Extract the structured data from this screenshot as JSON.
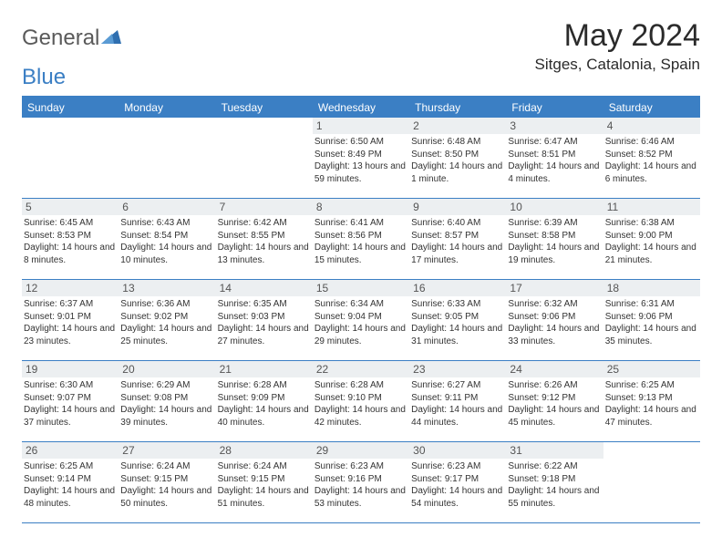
{
  "logo": {
    "text1": "General",
    "text2": "Blue"
  },
  "title": "May 2024",
  "location": "Sitges, Catalonia, Spain",
  "colors": {
    "primary": "#3b7fc4",
    "daynum_bg": "#eceff1",
    "text": "#333333"
  },
  "day_labels": [
    "Sunday",
    "Monday",
    "Tuesday",
    "Wednesday",
    "Thursday",
    "Friday",
    "Saturday"
  ],
  "weeks": [
    [
      {
        "n": "",
        "sunrise": "",
        "sunset": "",
        "daylight": "",
        "empty": true
      },
      {
        "n": "",
        "sunrise": "",
        "sunset": "",
        "daylight": "",
        "empty": true
      },
      {
        "n": "",
        "sunrise": "",
        "sunset": "",
        "daylight": "",
        "empty": true
      },
      {
        "n": "1",
        "sunrise": "Sunrise: 6:50 AM",
        "sunset": "Sunset: 8:49 PM",
        "daylight": "Daylight: 13 hours and 59 minutes."
      },
      {
        "n": "2",
        "sunrise": "Sunrise: 6:48 AM",
        "sunset": "Sunset: 8:50 PM",
        "daylight": "Daylight: 14 hours and 1 minute."
      },
      {
        "n": "3",
        "sunrise": "Sunrise: 6:47 AM",
        "sunset": "Sunset: 8:51 PM",
        "daylight": "Daylight: 14 hours and 4 minutes."
      },
      {
        "n": "4",
        "sunrise": "Sunrise: 6:46 AM",
        "sunset": "Sunset: 8:52 PM",
        "daylight": "Daylight: 14 hours and 6 minutes."
      }
    ],
    [
      {
        "n": "5",
        "sunrise": "Sunrise: 6:45 AM",
        "sunset": "Sunset: 8:53 PM",
        "daylight": "Daylight: 14 hours and 8 minutes."
      },
      {
        "n": "6",
        "sunrise": "Sunrise: 6:43 AM",
        "sunset": "Sunset: 8:54 PM",
        "daylight": "Daylight: 14 hours and 10 minutes."
      },
      {
        "n": "7",
        "sunrise": "Sunrise: 6:42 AM",
        "sunset": "Sunset: 8:55 PM",
        "daylight": "Daylight: 14 hours and 13 minutes."
      },
      {
        "n": "8",
        "sunrise": "Sunrise: 6:41 AM",
        "sunset": "Sunset: 8:56 PM",
        "daylight": "Daylight: 14 hours and 15 minutes."
      },
      {
        "n": "9",
        "sunrise": "Sunrise: 6:40 AM",
        "sunset": "Sunset: 8:57 PM",
        "daylight": "Daylight: 14 hours and 17 minutes."
      },
      {
        "n": "10",
        "sunrise": "Sunrise: 6:39 AM",
        "sunset": "Sunset: 8:58 PM",
        "daylight": "Daylight: 14 hours and 19 minutes."
      },
      {
        "n": "11",
        "sunrise": "Sunrise: 6:38 AM",
        "sunset": "Sunset: 9:00 PM",
        "daylight": "Daylight: 14 hours and 21 minutes."
      }
    ],
    [
      {
        "n": "12",
        "sunrise": "Sunrise: 6:37 AM",
        "sunset": "Sunset: 9:01 PM",
        "daylight": "Daylight: 14 hours and 23 minutes."
      },
      {
        "n": "13",
        "sunrise": "Sunrise: 6:36 AM",
        "sunset": "Sunset: 9:02 PM",
        "daylight": "Daylight: 14 hours and 25 minutes."
      },
      {
        "n": "14",
        "sunrise": "Sunrise: 6:35 AM",
        "sunset": "Sunset: 9:03 PM",
        "daylight": "Daylight: 14 hours and 27 minutes."
      },
      {
        "n": "15",
        "sunrise": "Sunrise: 6:34 AM",
        "sunset": "Sunset: 9:04 PM",
        "daylight": "Daylight: 14 hours and 29 minutes."
      },
      {
        "n": "16",
        "sunrise": "Sunrise: 6:33 AM",
        "sunset": "Sunset: 9:05 PM",
        "daylight": "Daylight: 14 hours and 31 minutes."
      },
      {
        "n": "17",
        "sunrise": "Sunrise: 6:32 AM",
        "sunset": "Sunset: 9:06 PM",
        "daylight": "Daylight: 14 hours and 33 minutes."
      },
      {
        "n": "18",
        "sunrise": "Sunrise: 6:31 AM",
        "sunset": "Sunset: 9:06 PM",
        "daylight": "Daylight: 14 hours and 35 minutes."
      }
    ],
    [
      {
        "n": "19",
        "sunrise": "Sunrise: 6:30 AM",
        "sunset": "Sunset: 9:07 PM",
        "daylight": "Daylight: 14 hours and 37 minutes."
      },
      {
        "n": "20",
        "sunrise": "Sunrise: 6:29 AM",
        "sunset": "Sunset: 9:08 PM",
        "daylight": "Daylight: 14 hours and 39 minutes."
      },
      {
        "n": "21",
        "sunrise": "Sunrise: 6:28 AM",
        "sunset": "Sunset: 9:09 PM",
        "daylight": "Daylight: 14 hours and 40 minutes."
      },
      {
        "n": "22",
        "sunrise": "Sunrise: 6:28 AM",
        "sunset": "Sunset: 9:10 PM",
        "daylight": "Daylight: 14 hours and 42 minutes."
      },
      {
        "n": "23",
        "sunrise": "Sunrise: 6:27 AM",
        "sunset": "Sunset: 9:11 PM",
        "daylight": "Daylight: 14 hours and 44 minutes."
      },
      {
        "n": "24",
        "sunrise": "Sunrise: 6:26 AM",
        "sunset": "Sunset: 9:12 PM",
        "daylight": "Daylight: 14 hours and 45 minutes."
      },
      {
        "n": "25",
        "sunrise": "Sunrise: 6:25 AM",
        "sunset": "Sunset: 9:13 PM",
        "daylight": "Daylight: 14 hours and 47 minutes."
      }
    ],
    [
      {
        "n": "26",
        "sunrise": "Sunrise: 6:25 AM",
        "sunset": "Sunset: 9:14 PM",
        "daylight": "Daylight: 14 hours and 48 minutes."
      },
      {
        "n": "27",
        "sunrise": "Sunrise: 6:24 AM",
        "sunset": "Sunset: 9:15 PM",
        "daylight": "Daylight: 14 hours and 50 minutes."
      },
      {
        "n": "28",
        "sunrise": "Sunrise: 6:24 AM",
        "sunset": "Sunset: 9:15 PM",
        "daylight": "Daylight: 14 hours and 51 minutes."
      },
      {
        "n": "29",
        "sunrise": "Sunrise: 6:23 AM",
        "sunset": "Sunset: 9:16 PM",
        "daylight": "Daylight: 14 hours and 53 minutes."
      },
      {
        "n": "30",
        "sunrise": "Sunrise: 6:23 AM",
        "sunset": "Sunset: 9:17 PM",
        "daylight": "Daylight: 14 hours and 54 minutes."
      },
      {
        "n": "31",
        "sunrise": "Sunrise: 6:22 AM",
        "sunset": "Sunset: 9:18 PM",
        "daylight": "Daylight: 14 hours and 55 minutes."
      },
      {
        "n": "",
        "sunrise": "",
        "sunset": "",
        "daylight": "",
        "empty": true
      }
    ]
  ]
}
